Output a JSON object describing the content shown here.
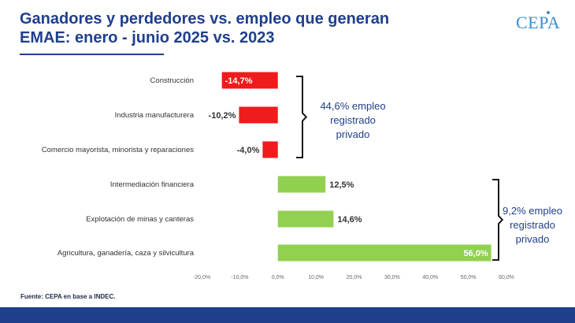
{
  "header": {
    "title_line1": "Ganadores y perdedores vs. empleo que generan",
    "title_line2": "EMAE: enero - junio 2025 vs. 2023",
    "logo": "CEPA"
  },
  "source": "Fuente: CEPA en base a INDEC.",
  "colors": {
    "negative": "#ee1c1c",
    "positive": "#92d050",
    "title": "#1f3f8c"
  },
  "chart_data": {
    "type": "bar",
    "orientation": "horizontal",
    "categories": [
      "Construcción",
      "Industria manufacturera",
      "Comercio mayorista, minorista y reparaciones",
      "Intermediación financiera",
      "Explotación de minas y canteras",
      "Agricultura, ganadería, caza y silvicultura"
    ],
    "values": [
      -14.7,
      -10.2,
      -4.0,
      12.5,
      14.6,
      56.0
    ],
    "value_labels": [
      "-14,7%",
      "-10,2%",
      "-4,0%",
      "12,5%",
      "14,6%",
      "56,0%"
    ],
    "xlim": [
      -20,
      60
    ],
    "xticks": [
      -20,
      -10,
      0,
      10,
      20,
      30,
      40,
      50,
      60
    ],
    "xtick_labels": [
      "-20,0%",
      "-10,0%",
      "0,0%",
      "10,0%",
      "20,0%",
      "30,0%",
      "40,0%",
      "50,0%",
      "60,0%"
    ],
    "grid": false,
    "annotations": [
      {
        "text_lines": [
          "44,6% empleo",
          "registrado",
          "privado"
        ],
        "groups": [
          0,
          1,
          2
        ]
      },
      {
        "text_lines": [
          "9,2% empleo",
          "registrado",
          "privado"
        ],
        "groups": [
          3,
          4,
          5
        ]
      }
    ]
  }
}
